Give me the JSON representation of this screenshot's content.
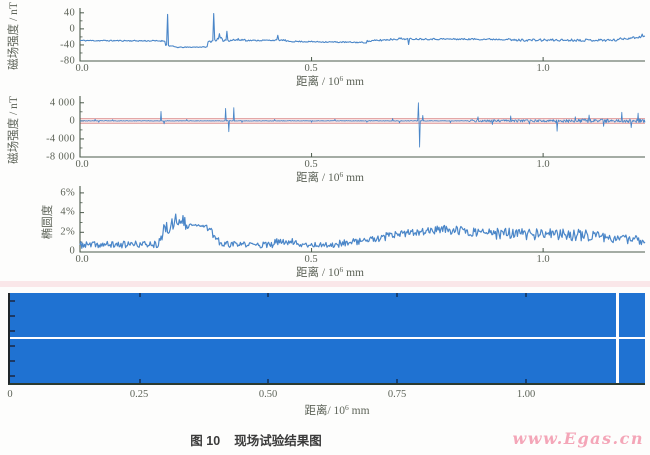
{
  "style": {
    "axis_color": "#4c5a4c",
    "tick_text_color": "#5d6358",
    "line_color": "#4a86c8",
    "band_blue": "#1f72d2",
    "red_band_fill": "#f6dada",
    "red_band_line": "#dd9494",
    "watermark_pink": "#f4a6b8"
  },
  "caption": {
    "prefix": "图 10",
    "title": "现场试验结果图"
  },
  "watermark": {
    "text": "www.Egas.cn"
  },
  "chart_data": [
    {
      "type": "line",
      "ylabel": "磁场强度 / nT",
      "xlabel": {
        "prefix": "距离 / 10",
        "sup": "6",
        "suffix": " mm"
      },
      "ylim": [
        -80,
        52
      ],
      "yticks": [
        {
          "v": 40,
          "label": "40"
        },
        {
          "v": 0,
          "label": "0"
        },
        {
          "v": -40,
          "label": "-40"
        },
        {
          "v": -80,
          "label": "-80"
        }
      ],
      "yminor": [
        20,
        -20,
        -60
      ],
      "xlim": [
        0,
        1.22
      ],
      "xticks": [
        {
          "v": 0,
          "label": "0.0"
        },
        {
          "v": 0.5,
          "label": "0.5"
        },
        {
          "v": 1,
          "label": "1.0"
        }
      ],
      "npoints": 600,
      "noise_seed": 11,
      "segments": [
        [
          0.0,
          0.185,
          -29,
          -30,
          1.5
        ],
        [
          0.185,
          0.21,
          -40,
          -46,
          1.5
        ],
        [
          0.21,
          0.275,
          -46,
          -45,
          1.0
        ],
        [
          0.275,
          0.305,
          -33,
          -24,
          3.0
        ],
        [
          0.305,
          0.36,
          -28,
          -27,
          3.5
        ],
        [
          0.36,
          0.445,
          -29,
          -28,
          1.5
        ],
        [
          0.445,
          0.62,
          -31,
          -34,
          1.5
        ],
        [
          0.62,
          0.695,
          -31,
          -24,
          2.5
        ],
        [
          0.695,
          0.93,
          -25,
          -26,
          2.0
        ],
        [
          0.93,
          1.16,
          -28,
          -28,
          3.0
        ],
        [
          1.16,
          1.22,
          -26,
          -19,
          3.0
        ]
      ],
      "spikes": [
        [
          0.19,
          36
        ],
        [
          0.288,
          38
        ],
        [
          0.3,
          -12
        ],
        [
          0.317,
          -6
        ],
        [
          0.428,
          -16
        ],
        [
          0.71,
          -39
        ],
        [
          1.213,
          -13
        ]
      ]
    },
    {
      "type": "line",
      "ylabel": "磁场强度 / nT",
      "xlabel": {
        "prefix": "距离 / 10",
        "sup": "6",
        "suffix": " mm"
      },
      "ylim": [
        -8000,
        5500
      ],
      "yticks": [
        {
          "v": 4000,
          "label": "4 000"
        },
        {
          "v": 0,
          "label": "0"
        },
        {
          "v": -4000,
          "label": "-4 000"
        },
        {
          "v": -8000,
          "label": "-8 000"
        }
      ],
      "yminor": [
        2000,
        -2000,
        -6000
      ],
      "xlim": [
        0,
        1.22
      ],
      "xticks": [
        {
          "v": 0,
          "label": "0.0"
        },
        {
          "v": 0.5,
          "label": "0.5"
        },
        {
          "v": 1,
          "label": "1.0"
        }
      ],
      "npoints": 900,
      "noise_seed": 23,
      "red_band": 550,
      "segments": [
        [
          0.0,
          0.84,
          0,
          0,
          60
        ],
        [
          0.84,
          1.02,
          0,
          0,
          260
        ],
        [
          1.02,
          1.22,
          0,
          0,
          420
        ]
      ],
      "spikes": [
        [
          0.033,
          350
        ],
        [
          0.04,
          -300
        ],
        [
          0.07,
          250
        ],
        [
          0.175,
          2100
        ],
        [
          0.182,
          -650
        ],
        [
          0.23,
          300
        ],
        [
          0.315,
          2750
        ],
        [
          0.321,
          -2400
        ],
        [
          0.332,
          2900
        ],
        [
          0.35,
          -350
        ],
        [
          0.42,
          300
        ],
        [
          0.5,
          -300
        ],
        [
          0.55,
          350
        ],
        [
          0.62,
          -300
        ],
        [
          0.675,
          500
        ],
        [
          0.69,
          -450
        ],
        [
          0.73,
          4000
        ],
        [
          0.734,
          -5800
        ],
        [
          0.74,
          1200
        ],
        [
          0.8,
          -400
        ],
        [
          0.86,
          900
        ],
        [
          0.89,
          -800
        ],
        [
          0.93,
          1100
        ],
        [
          0.97,
          -700
        ],
        [
          1.03,
          -2300
        ],
        [
          1.07,
          900
        ],
        [
          1.1,
          1300
        ],
        [
          1.13,
          -1200
        ],
        [
          1.17,
          1900
        ],
        [
          1.19,
          -1500
        ],
        [
          1.205,
          1700
        ]
      ]
    },
    {
      "type": "line",
      "ylabel": "椭圆度",
      "xlabel": {
        "prefix": "距离 / 10",
        "sup": "6",
        "suffix": " mm"
      },
      "ylim": [
        0,
        6.7
      ],
      "yticks": [
        {
          "v": 6,
          "label": "6%"
        },
        {
          "v": 4,
          "label": "4%"
        },
        {
          "v": 2,
          "label": "2%"
        },
        {
          "v": 0,
          "label": "0"
        }
      ],
      "yminor": [
        5,
        3,
        1
      ],
      "xlim": [
        0,
        1.22
      ],
      "xticks": [
        {
          "v": 0,
          "label": "0.0"
        },
        {
          "v": 0.5,
          "label": "0.5"
        },
        {
          "v": 1,
          "label": "1.0"
        }
      ],
      "npoints": 620,
      "noise_seed": 37,
      "clamp_min": 0.06,
      "segments": [
        [
          0.0,
          0.17,
          0.7,
          0.8,
          0.35
        ],
        [
          0.17,
          0.2,
          1.5,
          2.9,
          0.8
        ],
        [
          0.2,
          0.235,
          2.9,
          3.0,
          0.7
        ],
        [
          0.235,
          0.275,
          2.85,
          2.6,
          0.12
        ],
        [
          0.275,
          0.3,
          2.4,
          1.1,
          0.5
        ],
        [
          0.3,
          0.42,
          0.8,
          0.7,
          0.3
        ],
        [
          0.42,
          0.47,
          1.0,
          1.1,
          0.35
        ],
        [
          0.47,
          0.56,
          0.75,
          0.7,
          0.25
        ],
        [
          0.56,
          0.66,
          0.9,
          1.4,
          0.35
        ],
        [
          0.66,
          0.78,
          1.6,
          2.3,
          0.4
        ],
        [
          0.78,
          0.86,
          2.3,
          2.0,
          0.45
        ],
        [
          0.86,
          1.12,
          1.9,
          1.7,
          0.6
        ],
        [
          1.12,
          1.22,
          1.5,
          1.15,
          0.45
        ]
      ],
      "spikes": [
        [
          0.207,
          3.85
        ],
        [
          0.222,
          3.7
        ]
      ]
    },
    {
      "type": "heatmap",
      "xlabel": {
        "prefix": "距离/ 10",
        "sup": "6",
        "suffix": " mm"
      },
      "xlim": [
        0,
        1.234
      ],
      "xticks": [
        {
          "v": 0,
          "label": "0"
        },
        {
          "v": 0.25,
          "label": "0.25"
        },
        {
          "v": 0.5,
          "label": "0.50"
        },
        {
          "v": 0.75,
          "label": "0.75"
        },
        {
          "v": 1,
          "label": "1.00"
        }
      ],
      "fill_color": "#1f72d2",
      "hline_y_frac": 0.49,
      "vline_x": 1.178
    }
  ]
}
